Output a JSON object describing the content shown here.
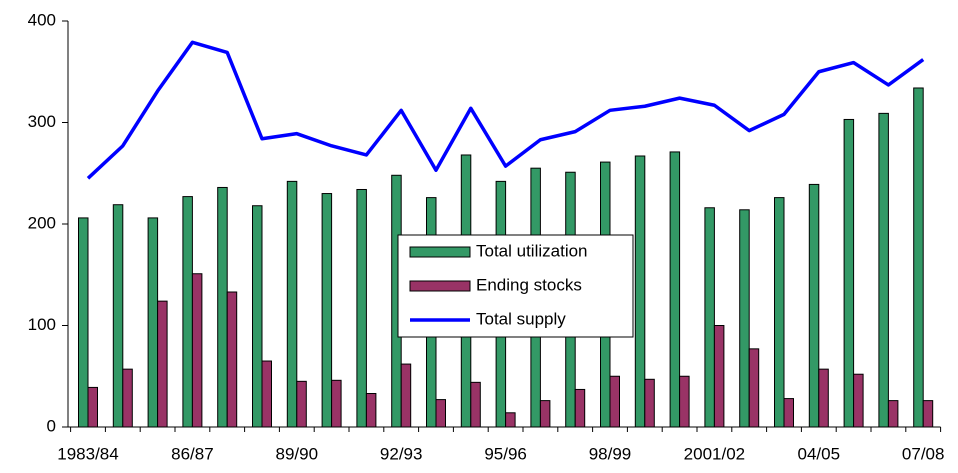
{
  "chart_data": {
    "type": "bar-line",
    "categories": [
      "1983/84",
      null,
      null,
      "86/87",
      null,
      null,
      "89/90",
      null,
      null,
      "92/93",
      null,
      null,
      "95/96",
      null,
      null,
      "98/99",
      null,
      null,
      "2001/02",
      null,
      null,
      "04/05",
      null,
      null,
      "07/08"
    ],
    "series": [
      {
        "name": "Total utilization",
        "type": "bar",
        "color": "#339966",
        "values": [
          206,
          219,
          206,
          227,
          236,
          218,
          242,
          230,
          234,
          248,
          226,
          268,
          242,
          255,
          251,
          261,
          267,
          271,
          216,
          214,
          226,
          239,
          303,
          309,
          334
        ]
      },
      {
        "name": "Ending stocks",
        "type": "bar",
        "color": "#993366",
        "values": [
          39,
          57,
          124,
          151,
          133,
          65,
          45,
          46,
          33,
          62,
          27,
          44,
          14,
          26,
          37,
          50,
          47,
          50,
          100,
          77,
          28,
          57,
          52,
          26,
          26
        ]
      },
      {
        "name": "Total supply",
        "type": "line",
        "color": "#0000ff",
        "values": [
          245,
          277,
          331,
          379,
          369,
          284,
          289,
          277,
          268,
          312,
          253,
          314,
          257,
          283,
          291,
          312,
          316,
          324,
          317,
          292,
          308,
          350,
          359,
          337,
          362
        ]
      }
    ],
    "ylim": [
      0,
      400
    ],
    "yticks": [
      0,
      100,
      200,
      300,
      400
    ],
    "grid": false
  }
}
